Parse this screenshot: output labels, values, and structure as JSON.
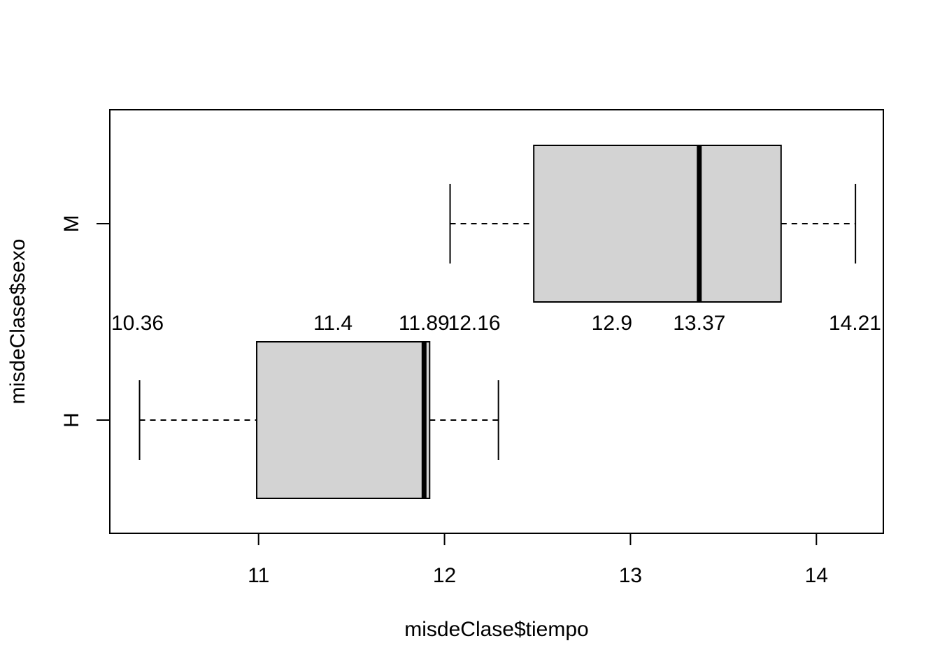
{
  "chart_data": {
    "type": "boxplot",
    "orientation": "horizontal",
    "xlabel": "misdeClase$tiempo",
    "ylabel": "misdeClase$sexo",
    "xlim": [
      10.2,
      14.36
    ],
    "xticks": [
      11,
      12,
      13,
      14
    ],
    "categories": [
      "H",
      "M"
    ],
    "boxes": [
      {
        "category": "H",
        "whisker_low": 10.36,
        "q1": 10.99,
        "median": 11.89,
        "q3": 11.92,
        "whisker_high": 12.29
      },
      {
        "category": "M",
        "whisker_low": 12.03,
        "q1": 12.48,
        "median": 13.37,
        "q3": 13.81,
        "whisker_high": 14.21
      }
    ],
    "annotations": [
      {
        "label": "10.36",
        "x": 10.36
      },
      {
        "label": "11.4",
        "x": 11.4
      },
      {
        "label": "11.89",
        "x": 11.89
      },
      {
        "label": "12.16",
        "x": 12.16
      },
      {
        "label": "12.9",
        "x": 12.9
      },
      {
        "label": "13.37",
        "x": 13.37
      },
      {
        "label": "14.21",
        "x": 14.21
      }
    ],
    "box_fill": "#d3d3d3",
    "grid": false,
    "legend": "none"
  }
}
